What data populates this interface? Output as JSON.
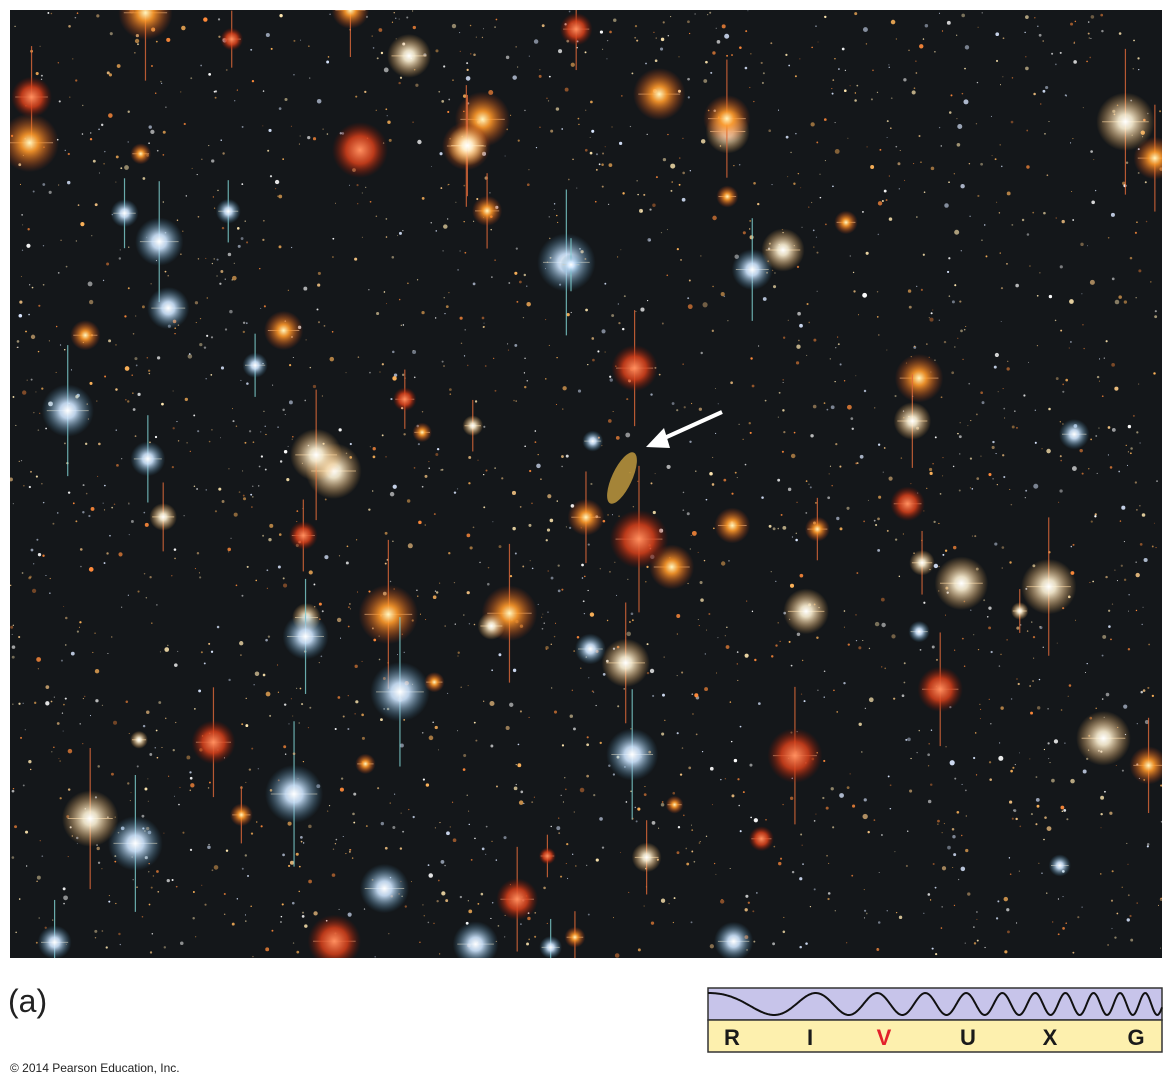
{
  "caption": "(a)",
  "copyright": "© 2014 Pearson Education, Inc.",
  "spectrum": {
    "bands": [
      {
        "label": "R",
        "color": "#1a1a1a"
      },
      {
        "label": "I",
        "color": "#1a1a1a"
      },
      {
        "label": "V",
        "color": "#e3202a"
      },
      {
        "label": "U",
        "color": "#1a1a1a"
      },
      {
        "label": "X",
        "color": "#1a1a1a"
      },
      {
        "label": "G",
        "color": "#1a1a1a"
      }
    ]
  }
}
